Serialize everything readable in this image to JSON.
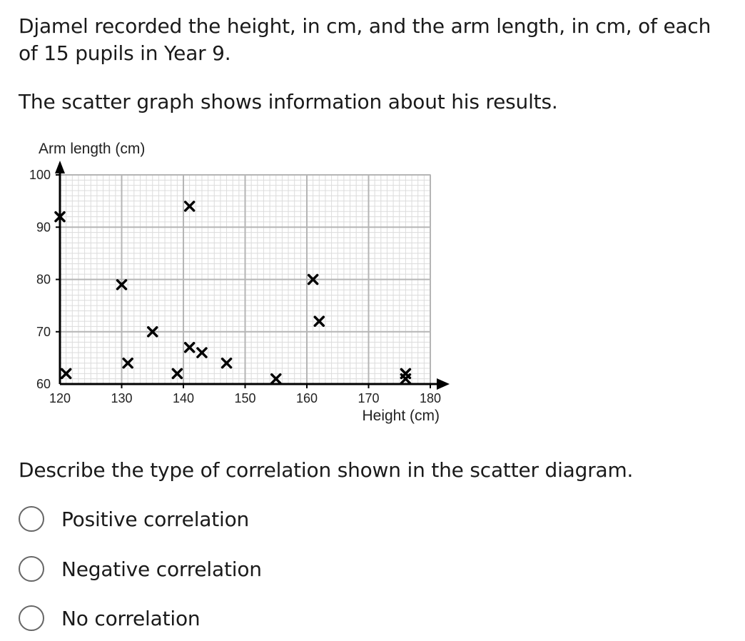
{
  "question": {
    "intro": "Djamel recorded the height, in cm, and the arm length, in cm, of each of 15 pupils in Year 9.",
    "statement": "The scatter graph shows information about his results.",
    "prompt": "Describe the type of correlation shown in the scatter diagram."
  },
  "options": [
    {
      "label": "Positive correlation"
    },
    {
      "label": "Negative correlation"
    },
    {
      "label": "No correlation"
    }
  ],
  "chart_data": {
    "type": "scatter",
    "xlabel": "Height (cm)",
    "ylabel": "Arm length (cm)",
    "xlim": [
      120,
      180
    ],
    "ylim": [
      60,
      100
    ],
    "xticks": [
      120,
      130,
      140,
      150,
      160,
      170,
      180
    ],
    "yticks": [
      60,
      70,
      80,
      90,
      100
    ],
    "grid": true,
    "marker": "x",
    "points": [
      {
        "x": 120,
        "y": 92
      },
      {
        "x": 121,
        "y": 62
      },
      {
        "x": 130,
        "y": 79
      },
      {
        "x": 131,
        "y": 64
      },
      {
        "x": 135,
        "y": 70
      },
      {
        "x": 139,
        "y": 62
      },
      {
        "x": 141,
        "y": 94
      },
      {
        "x": 141,
        "y": 67
      },
      {
        "x": 143,
        "y": 66
      },
      {
        "x": 147,
        "y": 64
      },
      {
        "x": 155,
        "y": 61
      },
      {
        "x": 161,
        "y": 80
      },
      {
        "x": 162,
        "y": 72
      },
      {
        "x": 176,
        "y": 62
      },
      {
        "x": 176,
        "y": 61
      }
    ],
    "colors": {
      "grid_major": "#b5b5b5",
      "grid_minor": "#dcdcdc",
      "axis": "#000000",
      "marker": "#000000"
    }
  }
}
